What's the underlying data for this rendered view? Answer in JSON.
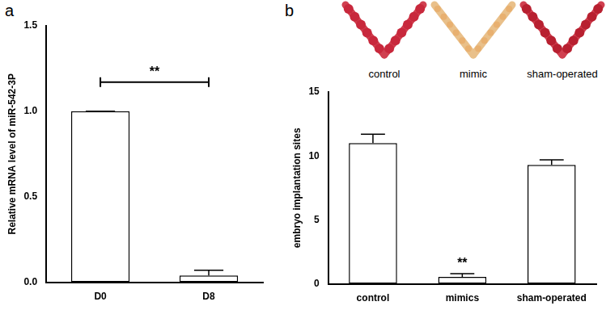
{
  "panel_labels": [
    "a",
    "b"
  ],
  "images": {
    "labels": [
      "control",
      "mimic",
      "sham-operated"
    ]
  },
  "chart_data": [
    {
      "type": "bar",
      "categories": [
        "D0",
        "D8"
      ],
      "values": [
        1.0,
        0.04
      ],
      "errors": [
        0,
        0.03
      ],
      "color": "#ffffff",
      "y_label": "Relative mRNA level of miR-542-3P",
      "ylim": [
        0,
        1.5
      ],
      "yticks": [
        {
          "value": 0,
          "label": "0.0"
        },
        {
          "value": 0.5,
          "label": "0.5"
        },
        {
          "value": 1,
          "label": "1.0"
        },
        {
          "value": 1.5,
          "label": "1.5"
        }
      ],
      "grid": false,
      "annotations": [
        {
          "text": "**",
          "x": [
            "D0",
            "D8"
          ],
          "y": 1.17
        }
      ]
    },
    {
      "type": "bar",
      "categories": [
        "control",
        "mimics",
        "sham-operated"
      ],
      "values": [
        11,
        0.55,
        9.3
      ],
      "errors": [
        0.7,
        0.25,
        0.4
      ],
      "color": "#ffffff",
      "y_label": "embryo implantation sites",
      "ylim": [
        0,
        15
      ],
      "yticks": [
        0,
        5,
        10,
        15
      ],
      "grid": false,
      "annotations": [
        {
          "text": "**",
          "x": [
            "mimics"
          ],
          "y": 1.1
        }
      ]
    }
  ]
}
